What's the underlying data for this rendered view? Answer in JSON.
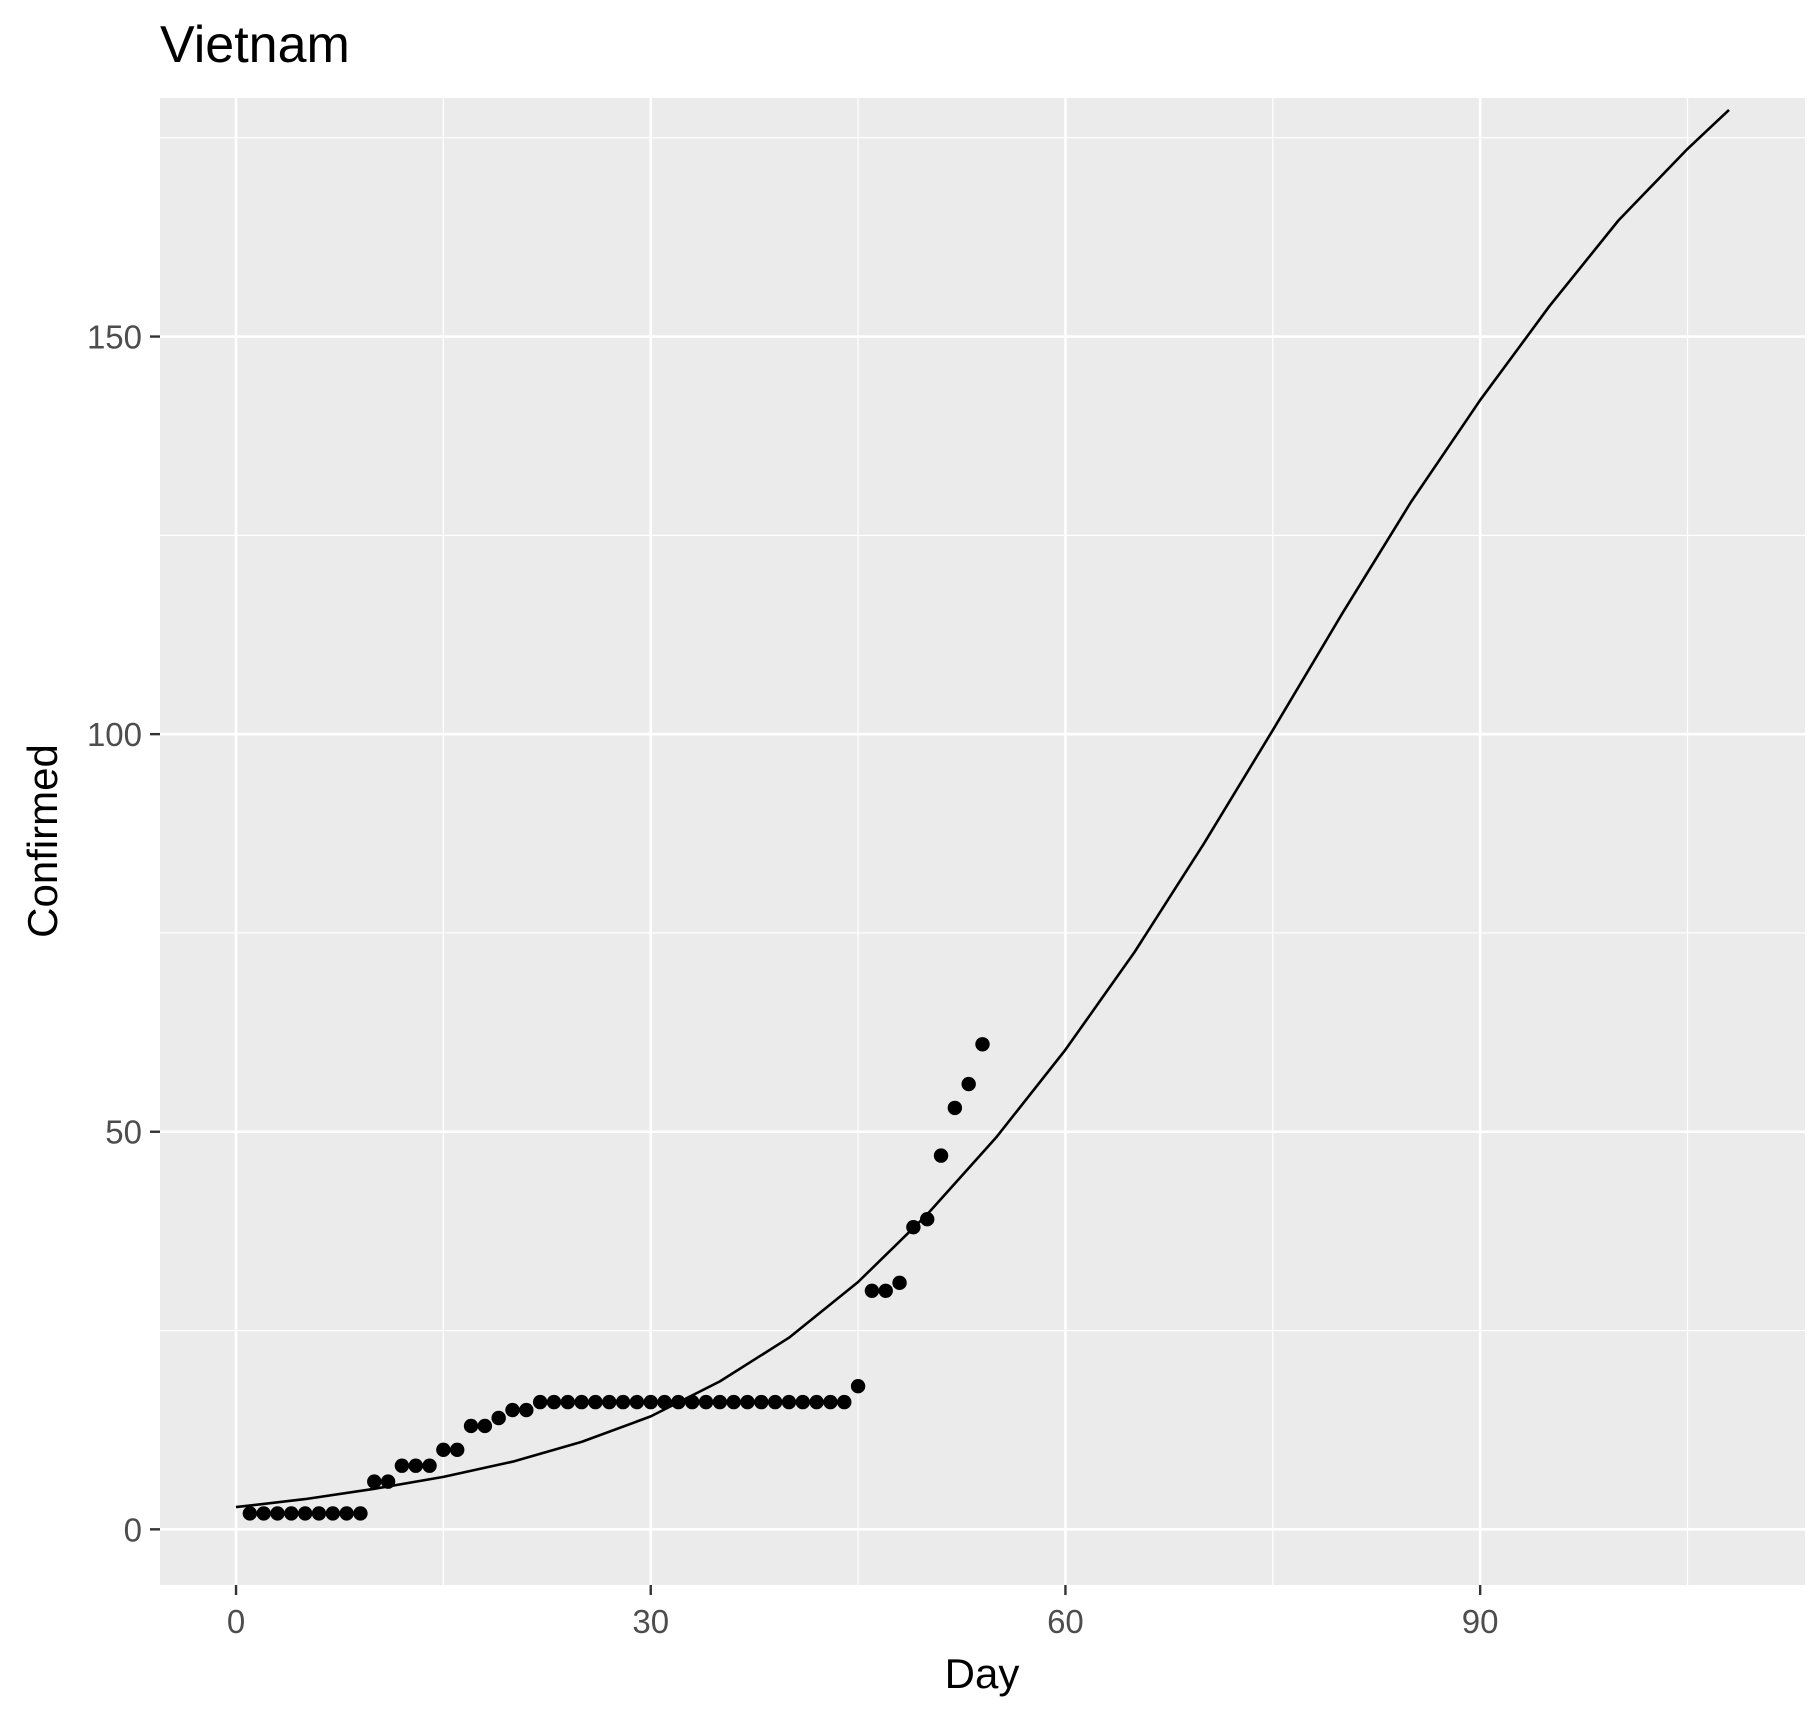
{
  "chart_data": {
    "type": "scatter",
    "title": "Vietnam",
    "xlabel": "Day",
    "ylabel": "Confirmed",
    "xlim": [
      -5.5,
      113.5
    ],
    "ylim": [
      -7,
      180
    ],
    "x_ticks": [
      0,
      30,
      60,
      90
    ],
    "y_ticks": [
      0,
      50,
      100,
      150
    ],
    "x_minor": [
      15,
      45,
      75,
      105
    ],
    "y_minor": [
      25,
      75,
      125,
      175
    ],
    "grid": true,
    "colors": {
      "panel": "#ebebeb",
      "grid": "#ffffff",
      "points": "#000000",
      "line": "#000000",
      "tick_text": "#4d4d4d"
    },
    "series": [
      {
        "type": "points",
        "x": [
          1,
          2,
          3,
          4,
          5,
          6,
          7,
          8,
          9,
          10,
          11,
          12,
          13,
          14,
          15,
          16,
          17,
          18,
          19,
          20,
          21,
          22,
          23,
          24,
          25,
          26,
          27,
          28,
          29,
          30,
          31,
          32,
          33,
          34,
          35,
          36,
          37,
          38,
          39,
          40,
          41,
          42,
          43,
          44,
          45,
          46,
          47,
          48,
          49,
          50,
          51,
          52,
          53,
          54
        ],
        "y": [
          2,
          2,
          2,
          2,
          2,
          2,
          2,
          2,
          2,
          6,
          6,
          8,
          8,
          8,
          10,
          10,
          13,
          13,
          14,
          15,
          15,
          16,
          16,
          16,
          16,
          16,
          16,
          16,
          16,
          16,
          16,
          16,
          16,
          16,
          16,
          16,
          16,
          16,
          16,
          16,
          16,
          16,
          16,
          16,
          18,
          30,
          30,
          31,
          38,
          39,
          47,
          53,
          56,
          61
        ]
      },
      {
        "type": "line",
        "x": [
          0,
          5,
          10,
          15,
          20,
          25,
          30,
          35,
          40,
          45,
          50,
          55,
          60,
          65,
          70,
          75,
          80,
          85,
          90,
          95,
          100,
          105,
          108
        ],
        "y": [
          2.8,
          3.8,
          5.1,
          6.6,
          8.5,
          11,
          14.2,
          18.6,
          24.1,
          31.1,
          39.6,
          49.3,
          60.3,
          72.6,
          86.2,
          100.5,
          115.1,
          129.2,
          142,
          153.8,
          164.6,
          173.6,
          178.5
        ]
      }
    ]
  }
}
